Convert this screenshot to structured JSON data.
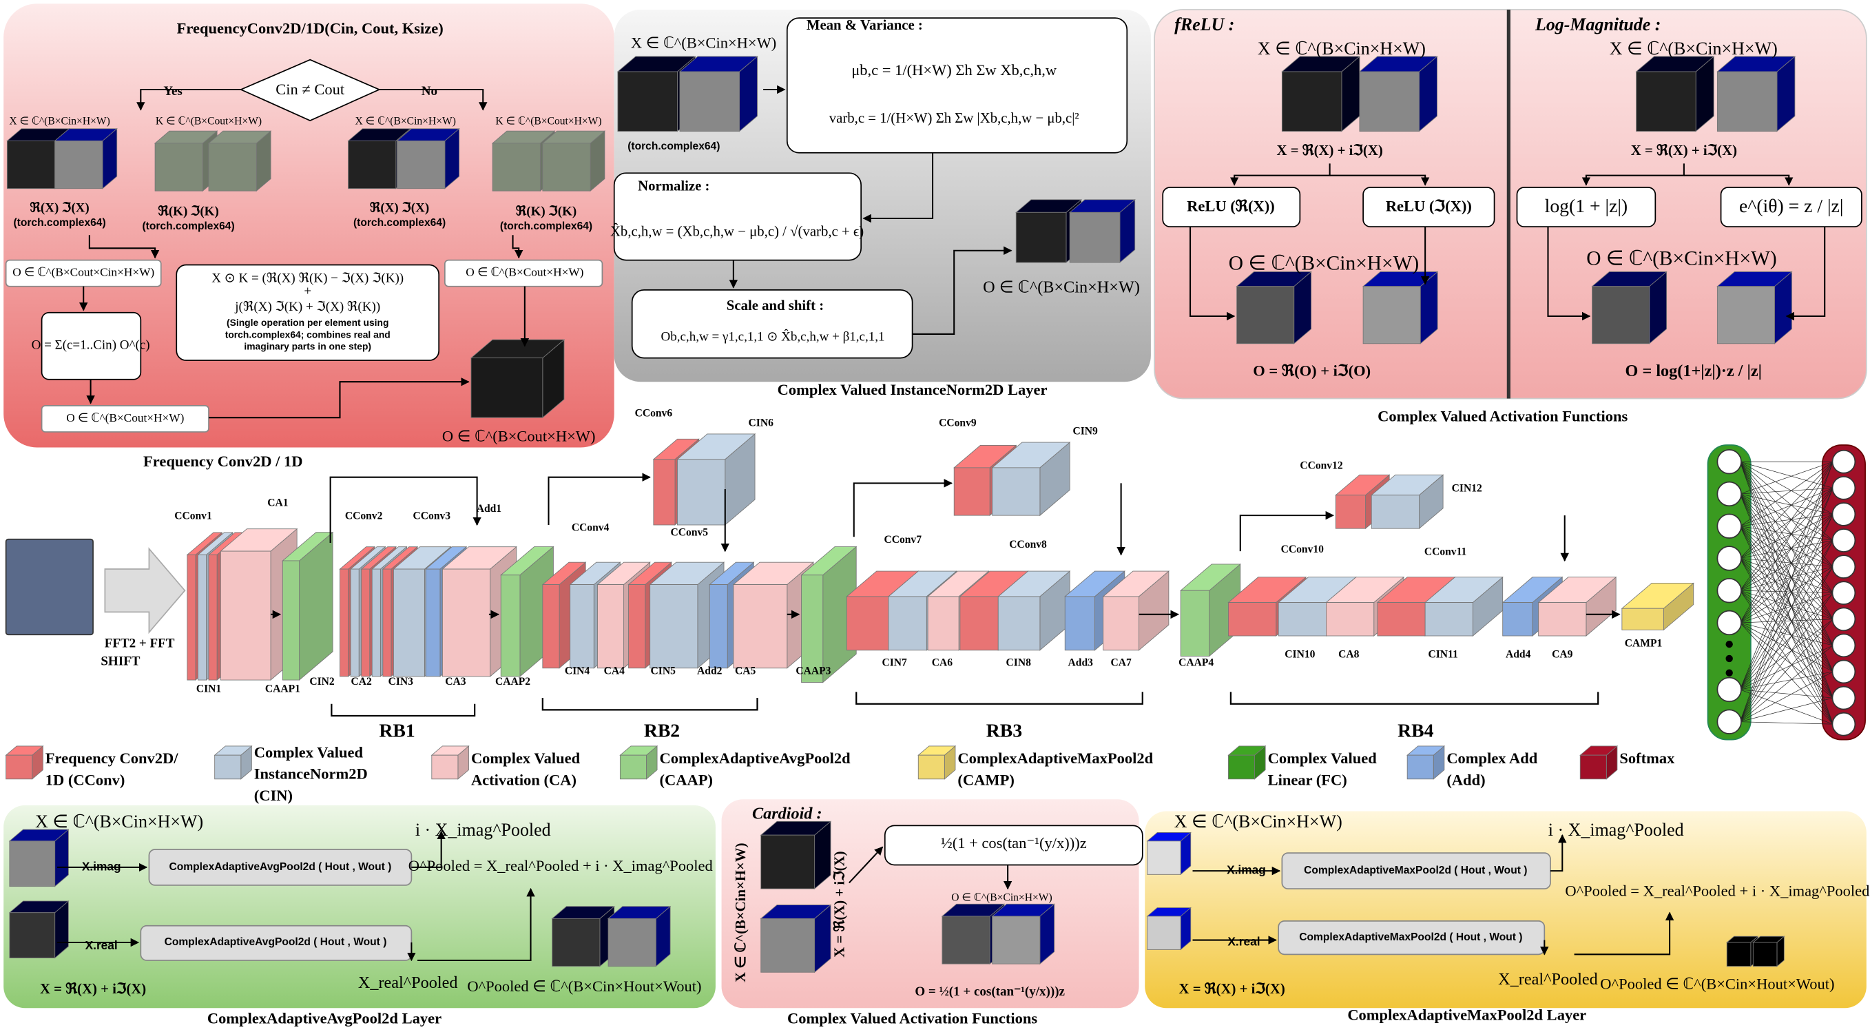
{
  "freq_conv": {
    "title": "FrequencyConv2D/1D(Cin, Cout, Ksize)",
    "condition": "Cin ≠ Cout",
    "yes": "Yes",
    "no": "No",
    "x_left": "X ∈ ℂ^(B×Cin×H×W)",
    "k_left": "K ∈ ℂ^(B×Cout×H×W)",
    "x_right": "X ∈ ℂ^(B×Cin×H×W)",
    "k_right": "K ∈ ℂ^(B×Cout×H×W)",
    "parts_x_left": "ℜ(X)  ℑ(X)",
    "dtype_x_left": "(torch.complex64)",
    "parts_k_left": "ℜ(K)  ℑ(K)",
    "dtype_k_left": "(torch.complex64)",
    "parts_x_right": "ℜ(X)  ℑ(X)",
    "dtype_x_right": "(torch.complex64)",
    "parts_k_right": "ℜ(K)  ℑ(K)",
    "dtype_k_right": "(torch.complex64)",
    "out_expanded_left": "O ∈ ℂ^(B×Cout×Cin×H×W)",
    "out_right": "O ∈ ℂ^(B×Cout×H×W)",
    "formula": [
      "X ⊙ K = (ℜ(X) ℜ(K)  −  ℑ(X) ℑ(K))",
      "+",
      "j(ℜ(X) ℑ(K)  +  ℑ(X) ℜ(K))",
      "(Single operation per element using",
      "torch.complex64; combines real and",
      "imaginary parts in one step)"
    ],
    "sum": "O = Σ(c=1..Cin) O^(c)",
    "out_left": "O ∈ ℂ^(B×Cout×H×W)",
    "out_final": "O ∈ ℂ^(B×Cout×H×W)",
    "caption": "Frequency Conv2D / 1D"
  },
  "instance_norm": {
    "input": "X ∈ ℂ^(B×Cin×H×W)",
    "dtype": "(torch.complex64)",
    "mean_title": "Mean & Variance :",
    "mean": "μb,c = 1/(H×W) Σh Σw Xb,c,h,w",
    "var": "varb,c = 1/(H×W) Σh Σw |Xb,c,h,w − μb,c|²",
    "norm_title": "Normalize :",
    "norm": "X̂b,c,h,w = (Xb,c,h,w − μb,c) / √(varb,c + ϵ)",
    "scale_title": "Scale and shift :",
    "scale": "Ob,c,h,w = γ1,c,1,1 ⊙ X̂b,c,h,w + β1,c,1,1",
    "output": "O ∈ ℂ^(B×Cin×H×W)",
    "caption": "Complex Valued InstanceNorm2D Layer"
  },
  "activation": {
    "frelu_title": "fReLU :",
    "frelu_input": "X ∈ ℂ^(B×Cin×H×W)",
    "frelu_split": "X = ℜ(X)  +  iℑ(X)",
    "relu_real": "ReLU (ℜ(X))",
    "relu_imag": "ReLU (ℑ(X))",
    "frelu_output": "O ∈ ℂ^(B×Cin×H×W)",
    "frelu_result": "O = ℜ(O)  +  iℑ(O)",
    "log_title": "Log-Magnitude :",
    "log_input": "X ∈ ℂ^(B×Cin×H×W)",
    "log_split": "X = ℜ(X)  +  iℑ(X)",
    "log_box": "log(1 + |z|)",
    "phase_box": "e^(iθ) = z / |z|",
    "log_output": "O ∈ ℂ^(B×Cin×H×W)",
    "log_result": "O = log(1+|z|)·z / |z|",
    "caption": "Complex Valued Activation Functions"
  },
  "architecture": {
    "fft": [
      "FFT2 + FFT",
      "SHIFT"
    ],
    "labels": [
      "CConv1",
      "CA1",
      "CIN1",
      "CAAP1",
      "CConv2",
      "CConv3",
      "Add1",
      "CIN2",
      "CA2",
      "CIN3",
      "CA3",
      "CAAP2",
      "CConv6",
      "CIN6",
      "CConv4",
      "CConv5",
      "CIN4",
      "CA4",
      "CIN5",
      "Add2",
      "CA5",
      "CAAP3",
      "CConv9",
      "CIN9",
      "CConv7",
      "CConv8",
      "CIN7",
      "CA6",
      "CIN8",
      "Add3",
      "CA7",
      "CAAP4",
      "CConv12",
      "CIN12",
      "CConv10",
      "CConv11",
      "CIN10",
      "CA8",
      "CIN11",
      "Add4",
      "CA9",
      "CAMP1"
    ],
    "blocks": [
      "RB1",
      "RB2",
      "RB3",
      "RB4"
    ]
  },
  "legend": [
    {
      "label": [
        "Frequency Conv2D/",
        "1D (CConv)"
      ],
      "color": "#e87474"
    },
    {
      "label": [
        "Complex Valued",
        "InstanceNorm2D",
        "(CIN)"
      ],
      "color": "#b8c8d8"
    },
    {
      "label": [
        "Complex Valued",
        "Activation (CA)"
      ],
      "color": "#f4c4c4"
    },
    {
      "label": [
        "ComplexAdaptiveAvgPool2d",
        "(CAAP)"
      ],
      "color": "#98d088"
    },
    {
      "label": [
        "ComplexAdaptiveMaxPool2d",
        "(CAMP)"
      ],
      "color": "#f0d870"
    },
    {
      "label": [
        "Complex Valued",
        "Linear (FC)"
      ],
      "color": "#3a9a20"
    },
    {
      "label": [
        "Complex Add",
        "(Add)"
      ],
      "color": "#88aadd"
    },
    {
      "label": [
        "Softmax"
      ],
      "color": "#a01028"
    }
  ],
  "avgpool": {
    "input": "X ∈ ℂ^(B×Cin×H×W)",
    "imag": "X.imag",
    "real": "X.real",
    "op_imag": "ComplexAdaptiveAvgPool2d ( Hout , Wout )",
    "op_real": "ComplexAdaptiveAvgPool2d ( Hout , Wout )",
    "pooled_imag": "i · X_imag^Pooled",
    "combine": "O^Pooled = X_real^Pooled + i · X_imag^Pooled",
    "pooled_real": "X_real^Pooled",
    "output": "O^Pooled ∈ ℂ^(B×Cin×Hout×Wout)",
    "split": "X = ℜ(X)  +  iℑ(X)",
    "caption": "ComplexAdaptiveAvgPool2d Layer"
  },
  "cardioid": {
    "title": "Cardioid :",
    "input": "X ∈ ℂ^(B×Cin×H×W)",
    "split": "X = ℜ(X) + iℑ(X)",
    "box": "½(1 + cos(tan⁻¹(y/x)))z",
    "output": "O ∈ ℂ^(B×Cin×H×W)",
    "result": "O = ½(1 + cos(tan⁻¹(y/x)))z",
    "caption": "Complex Valued Activation Functions"
  },
  "maxpool": {
    "input": "X ∈ ℂ^(B×Cin×H×W)",
    "imag": "X.imag",
    "real": "X.real",
    "op_imag": "ComplexAdaptiveMaxPool2d ( Hout , Wout )",
    "op_real": "ComplexAdaptiveMaxPool2d ( Hout , Wout )",
    "pooled_imag": "i · X_imag^Pooled",
    "combine": "O^Pooled = X_real^Pooled + i · X_imag^Pooled",
    "pooled_real": "X_real^Pooled",
    "output": "O^Pooled ∈ ℂ^(B×Cin×Hout×Wout)",
    "split": "X = ℜ(X) + iℑ(X)",
    "caption": "ComplexAdaptiveMaxPool2d Layer"
  }
}
